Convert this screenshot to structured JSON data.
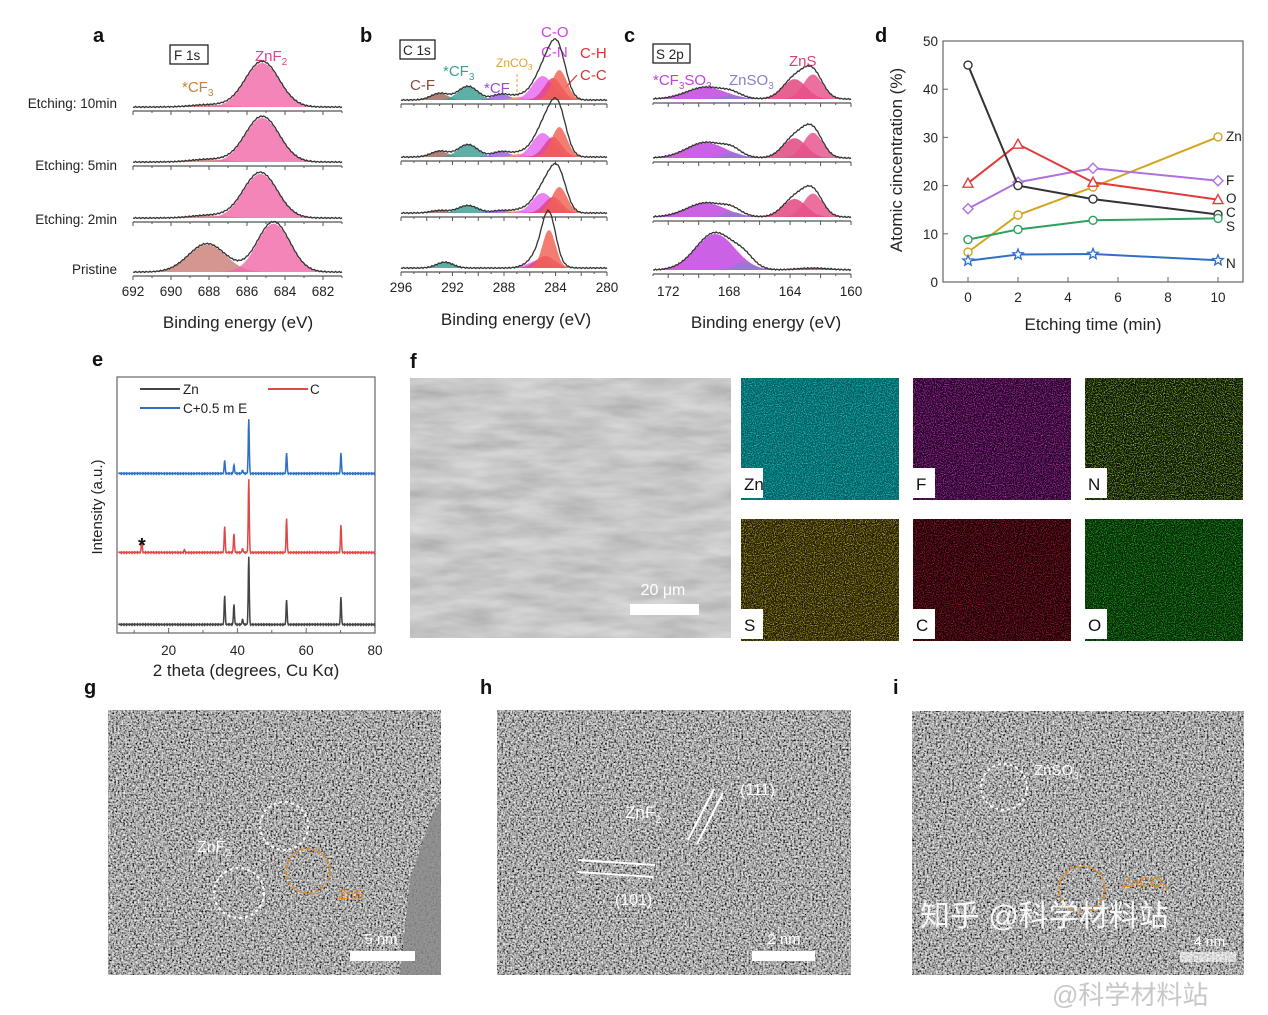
{
  "panel_letters": {
    "a": "a",
    "b": "b",
    "c": "c",
    "d": "d",
    "e": "e",
    "f": "f",
    "g": "g",
    "h": "h",
    "i": "i"
  },
  "chart_data": [
    {
      "panel": "a",
      "type": "area",
      "box_label": "F 1s",
      "xlabel": "Binding energy (eV)",
      "xlim": [
        692,
        681
      ],
      "xticks": [
        "692",
        "690",
        "688",
        "686",
        "684",
        "682"
      ],
      "rows": [
        "Etching: 10min",
        "Etching: 5min",
        "Etching: 2min",
        "Pristine"
      ],
      "annotations": [
        {
          "main": "ZnF",
          "sub": "2",
          "color": "#e0428c"
        },
        {
          "main": "*CF",
          "sub": "3",
          "color": "#c98038"
        }
      ],
      "spectra": [
        {
          "row": "Etching: 10min",
          "components": [
            {
              "species": "*CF3",
              "center": 688.0,
              "height": 0.05,
              "fwhm": 2.2,
              "color": "#c98078"
            },
            {
              "species": "ZnF2",
              "center": 685.2,
              "height": 1.0,
              "fwhm": 2.1,
              "color": "#f06aa8"
            }
          ]
        },
        {
          "row": "Etching: 5min",
          "components": [
            {
              "species": "*CF3",
              "center": 688.0,
              "height": 0.06,
              "fwhm": 2.2,
              "color": "#c98078"
            },
            {
              "species": "ZnF2",
              "center": 685.2,
              "height": 1.0,
              "fwhm": 2.1,
              "color": "#f06aa8"
            }
          ]
        },
        {
          "row": "Etching: 2min",
          "components": [
            {
              "species": "*CF3",
              "center": 688.0,
              "height": 0.06,
              "fwhm": 2.2,
              "color": "#c98078"
            },
            {
              "species": "ZnF2",
              "center": 685.3,
              "height": 1.0,
              "fwhm": 2.1,
              "color": "#f06aa8"
            }
          ]
        },
        {
          "row": "Pristine",
          "components": [
            {
              "species": "*CF3",
              "center": 688.1,
              "height": 0.62,
              "fwhm": 2.3,
              "color": "#c98078"
            },
            {
              "species": "ZnF2",
              "center": 684.6,
              "height": 1.1,
              "fwhm": 2.0,
              "color": "#f06aa8"
            }
          ]
        }
      ]
    },
    {
      "panel": "b",
      "type": "area",
      "box_label": "C 1s",
      "xlabel": "Binding energy (eV)",
      "xlim": [
        296,
        280
      ],
      "xticks": [
        "296",
        "292",
        "288",
        "284",
        "280"
      ],
      "annotations": [
        {
          "main": "C-F",
          "sub": "",
          "color": "#8b4a3a"
        },
        {
          "main": "*CF",
          "sub": "3",
          "color": "#3d9e92"
        },
        {
          "main": "ZnCO",
          "sub": "3",
          "color": "#e8a030"
        },
        {
          "main": "*CF",
          "sub": "",
          "color": "#9a4ae0"
        },
        {
          "main": "C-O",
          "sub": "",
          "color": "#d040e8"
        },
        {
          "main": "C-N",
          "sub": "",
          "color": "#d040e8"
        },
        {
          "main": "C-H",
          "sub": "",
          "color": "#e03030"
        },
        {
          "main": "C-C",
          "sub": "",
          "color": "#e03030"
        }
      ],
      "spectra": [
        {
          "row": "Etching: 10min",
          "components": [
            {
              "species": "C-F",
              "center": 293.0,
              "height": 0.16,
              "fwhm": 1.6,
              "color": "#a0655e"
            },
            {
              "species": "*CF3",
              "center": 290.8,
              "height": 0.33,
              "fwhm": 1.8,
              "color": "#3d9e92"
            },
            {
              "species": "*CF",
              "center": 288.2,
              "height": 0.14,
              "fwhm": 1.6,
              "color": "#9a5ae0"
            },
            {
              "species": "ZnCO3",
              "center": 286.8,
              "height": 0.08,
              "fwhm": 1.4,
              "color": "#f0a040"
            },
            {
              "species": "C-O/C-N",
              "center": 285.0,
              "height": 0.6,
              "fwhm": 1.9,
              "color": "#e868f0"
            },
            {
              "species": "C-H",
              "center": 284.2,
              "height": 0.55,
              "fwhm": 1.6,
              "color": "#e0408a"
            },
            {
              "species": "C-C",
              "center": 283.7,
              "height": 0.75,
              "fwhm": 1.4,
              "color": "#f06050"
            }
          ]
        },
        {
          "row": "Etching: 5min",
          "components": [
            {
              "species": "C-F",
              "center": 293.0,
              "height": 0.14,
              "fwhm": 1.6,
              "color": "#a0655e"
            },
            {
              "species": "*CF3",
              "center": 290.8,
              "height": 0.3,
              "fwhm": 1.8,
              "color": "#3d9e92"
            },
            {
              "species": "*CF",
              "center": 288.2,
              "height": 0.13,
              "fwhm": 1.6,
              "color": "#9a5ae0"
            },
            {
              "species": "ZnCO3",
              "center": 286.8,
              "height": 0.08,
              "fwhm": 1.4,
              "color": "#f0a040"
            },
            {
              "species": "C-O/C-N",
              "center": 285.0,
              "height": 0.6,
              "fwhm": 1.9,
              "color": "#e868f0"
            },
            {
              "species": "C-H",
              "center": 284.2,
              "height": 0.5,
              "fwhm": 1.6,
              "color": "#e0408a"
            },
            {
              "species": "C-C",
              "center": 283.7,
              "height": 0.75,
              "fwhm": 1.4,
              "color": "#f06050"
            }
          ]
        },
        {
          "row": "Etching: 2min",
          "components": [
            {
              "species": "C-F",
              "center": 293.0,
              "height": 0.06,
              "fwhm": 1.6,
              "color": "#a0655e"
            },
            {
              "species": "*CF3",
              "center": 290.8,
              "height": 0.18,
              "fwhm": 1.8,
              "color": "#3d9e92"
            },
            {
              "species": "*CF",
              "center": 288.2,
              "height": 0.06,
              "fwhm": 1.6,
              "color": "#9a5ae0"
            },
            {
              "species": "ZnCO3",
              "center": 286.8,
              "height": 0.06,
              "fwhm": 1.4,
              "color": "#f0a040"
            },
            {
              "species": "C-O/C-N",
              "center": 285.0,
              "height": 0.5,
              "fwhm": 1.9,
              "color": "#e868f0"
            },
            {
              "species": "C-H",
              "center": 284.2,
              "height": 0.4,
              "fwhm": 1.6,
              "color": "#e0408a"
            },
            {
              "species": "C-C",
              "center": 283.7,
              "height": 0.65,
              "fwhm": 1.4,
              "color": "#f06050"
            }
          ]
        },
        {
          "row": "Pristine",
          "components": [
            {
              "species": "*CF3",
              "center": 292.6,
              "height": 0.14,
              "fwhm": 1.5,
              "color": "#3d9e92"
            },
            {
              "species": "C-O/C-N",
              "center": 285.2,
              "height": 0.2,
              "fwhm": 2.0,
              "color": "#e868f0"
            },
            {
              "species": "C-H",
              "center": 284.8,
              "height": 0.3,
              "fwhm": 1.8,
              "color": "#e0408a"
            },
            {
              "species": "C-C",
              "center": 284.5,
              "height": 0.95,
              "fwhm": 1.2,
              "color": "#f06050"
            }
          ]
        }
      ]
    },
    {
      "panel": "c",
      "type": "area",
      "box_label": "S 2p",
      "xlabel": "Binding energy (eV)",
      "xlim": [
        173,
        160
      ],
      "xticks": [
        "172",
        "168",
        "164",
        "160"
      ],
      "annotations": [
        {
          "main": "*CF",
          "sub": "3",
          "main2": "SO",
          "sub2": "3",
          "color": "#c040e0"
        },
        {
          "main": "ZnSO",
          "sub": "3",
          "color": "#8e7ec8"
        },
        {
          "main": "ZnS",
          "sub": "",
          "color": "#e0407a"
        }
      ],
      "spectra": [
        {
          "row": "Etching: 10min",
          "components": [
            {
              "species": "*CF3SO3",
              "center": 169.5,
              "height": 0.32,
              "fwhm": 3.0,
              "color": "#c040e0"
            },
            {
              "species": "ZnSO3",
              "center": 167.8,
              "height": 0.1,
              "fwhm": 1.4,
              "color": "#8e7ec8"
            },
            {
              "species": "ZnS",
              "center": 163.7,
              "height": 0.55,
              "fwhm": 1.8,
              "color": "#e0407a"
            },
            {
              "species": "ZnS",
              "center": 162.5,
              "height": 0.68,
              "fwhm": 1.5,
              "color": "#e8508a"
            }
          ]
        },
        {
          "row": "Etching: 5min",
          "components": [
            {
              "species": "*CF3SO3",
              "center": 169.5,
              "height": 0.42,
              "fwhm": 3.0,
              "color": "#c040e0"
            },
            {
              "species": "ZnSO3",
              "center": 167.8,
              "height": 0.15,
              "fwhm": 1.4,
              "color": "#8e7ec8"
            },
            {
              "species": "ZnS",
              "center": 163.7,
              "height": 0.55,
              "fwhm": 1.8,
              "color": "#e0407a"
            },
            {
              "species": "ZnS",
              "center": 162.5,
              "height": 0.7,
              "fwhm": 1.5,
              "color": "#e8508a"
            }
          ]
        },
        {
          "row": "Etching: 2min",
          "components": [
            {
              "species": "*CF3SO3",
              "center": 169.5,
              "height": 0.38,
              "fwhm": 3.0,
              "color": "#c040e0"
            },
            {
              "species": "ZnSO3",
              "center": 167.8,
              "height": 0.14,
              "fwhm": 1.4,
              "color": "#8e7ec8"
            },
            {
              "species": "ZnS",
              "center": 163.7,
              "height": 0.5,
              "fwhm": 1.8,
              "color": "#e0407a"
            },
            {
              "species": "ZnS",
              "center": 162.5,
              "height": 0.65,
              "fwhm": 1.5,
              "color": "#e8508a"
            }
          ]
        },
        {
          "row": "Pristine",
          "components": [
            {
              "species": "*CF3SO3",
              "center": 168.9,
              "height": 1.0,
              "fwhm": 3.0,
              "color": "#c040e0"
            },
            {
              "species": "ZnSO3",
              "center": 167.0,
              "height": 0.22,
              "fwhm": 1.5,
              "color": "#8e7ec8"
            },
            {
              "species": "ZnS",
              "center": 162.5,
              "height": 0.05,
              "fwhm": 2.5,
              "color": "#e0407a"
            }
          ]
        }
      ]
    },
    {
      "panel": "d",
      "type": "line",
      "xlabel": "Etching time (min)",
      "ylabel": "Atomic cincentration (%)",
      "xlim": [
        -1,
        11
      ],
      "ylim": [
        0,
        50
      ],
      "xticks": [
        "0",
        "2",
        "4",
        "6",
        "8",
        "10"
      ],
      "yticks": [
        "0",
        "10",
        "20",
        "30",
        "40",
        "50"
      ],
      "x": [
        0,
        2,
        5,
        10
      ],
      "series": [
        {
          "name": "Zn",
          "values": [
            6.2,
            13.9,
            19.7,
            30.1
          ],
          "color": "#d4a520",
          "marker": "circle"
        },
        {
          "name": "F",
          "values": [
            15.2,
            20.7,
            23.6,
            21.0
          ],
          "color": "#b070e0",
          "marker": "diamond"
        },
        {
          "name": "O",
          "values": [
            20.5,
            28.6,
            20.7,
            17.1
          ],
          "color": "#e03c3c",
          "marker": "triangle"
        },
        {
          "name": "C",
          "values": [
            45.0,
            20.0,
            17.2,
            14.0
          ],
          "color": "#333333",
          "marker": "circle"
        },
        {
          "name": "S",
          "values": [
            8.8,
            10.9,
            12.8,
            13.2
          ],
          "color": "#2ea060",
          "marker": "circle"
        },
        {
          "name": "N",
          "values": [
            4.4,
            5.7,
            5.8,
            4.5
          ],
          "color": "#2f6fc8",
          "marker": "star"
        }
      ]
    },
    {
      "panel": "e",
      "type": "line",
      "xlabel": "2 theta (degrees, Cu Kα)",
      "ylabel": "Intensity (a.u.)",
      "xlim": [
        5,
        80
      ],
      "xticks": [
        "20",
        "40",
        "60",
        "80"
      ],
      "legend_position": "top",
      "marker_note": "*",
      "series": [
        {
          "name": "Zn",
          "color": "#444444",
          "peaks": [
            [
              36.3,
              0.42
            ],
            [
              39.0,
              0.3
            ],
            [
              41.5,
              0.08
            ],
            [
              43.3,
              1.0
            ],
            [
              54.3,
              0.36
            ],
            [
              70.1,
              0.4
            ]
          ]
        },
        {
          "name": "C",
          "color": "#e04848",
          "peaks": [
            [
              12.2,
              0.17
            ],
            [
              24.6,
              0.04
            ],
            [
              36.3,
              0.38
            ],
            [
              39.0,
              0.28
            ],
            [
              41.5,
              0.06
            ],
            [
              43.3,
              1.08
            ],
            [
              54.3,
              0.5
            ],
            [
              70.1,
              0.4
            ]
          ]
        },
        {
          "name": "C+0.5 m E",
          "color": "#2f6fc8",
          "peaks": [
            [
              36.3,
              0.19
            ],
            [
              39.0,
              0.13
            ],
            [
              41.5,
              0.05
            ],
            [
              43.3,
              0.8
            ],
            [
              54.3,
              0.3
            ],
            [
              70.1,
              0.3
            ]
          ]
        }
      ]
    }
  ],
  "sem": {
    "scale_bar": "20 μm"
  },
  "eds_maps": [
    {
      "element": "Zn",
      "color": "#20d8d8",
      "bg": "#0a6c70"
    },
    {
      "element": "F",
      "color": "#d040d0",
      "bg": "#2a0a2c"
    },
    {
      "element": "N",
      "color": "#a8e040",
      "bg": "#081006"
    },
    {
      "element": "S",
      "color": "#d8c830",
      "bg": "#242008"
    },
    {
      "element": "C",
      "color": "#c02040",
      "bg": "#200408"
    },
    {
      "element": "O",
      "color": "#30c030",
      "bg": "#0a300a"
    }
  ],
  "tem_g": {
    "label_znf2_main": "ZnF",
    "label_znf2_sub": "2",
    "label_zns": "ZnS",
    "scale_bar": "5 nm",
    "orange": "#e08a20"
  },
  "tem_h": {
    "label_znf2_main": "ZnF",
    "label_znf2_sub": "2",
    "plane_111": "(111)",
    "plane_101": "(101)",
    "scale_bar": "2 nm"
  },
  "tem_i": {
    "label_znso3_main": "ZnSO",
    "label_znso3_sub": "3",
    "label_znco3_main": "ZnCO",
    "label_znco3_sub": "3",
    "scale_bar": "4 nm"
  },
  "watermark": {
    "line1": "知乎 @科学材料站",
    "line2": "@科学材料站"
  }
}
